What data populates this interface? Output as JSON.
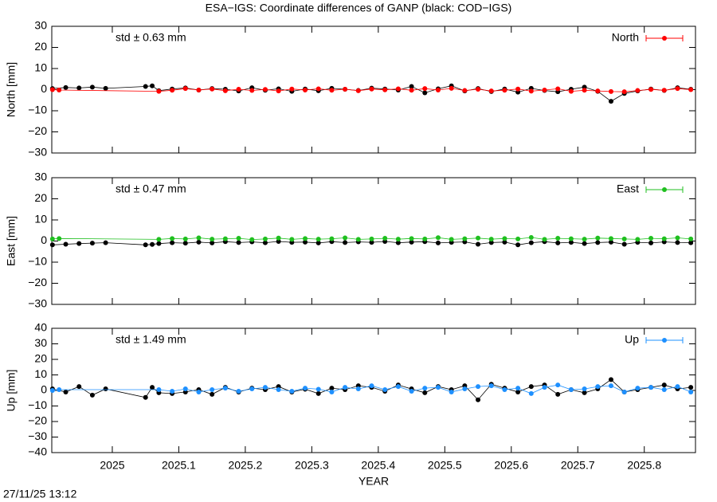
{
  "chart_data": [
    {
      "type": "line",
      "title": "ESA−IGS: Coordinate differences of GANP (black: COD−IGS)",
      "ylabel": "North [mm]",
      "annotation": "std ± 0.63 mm",
      "legend": "upper right",
      "xlim": [
        2024.909,
        2025.877
      ],
      "ylim": [
        -30,
        30
      ],
      "yticks": [
        {
          "value": -30,
          "label": "−30"
        },
        {
          "value": -20,
          "label": "−20"
        },
        {
          "value": -10,
          "label": "−10"
        },
        0,
        10,
        20,
        30
      ],
      "series": [
        {
          "color": "#000000",
          "x": [
            2024.91,
            2024.93,
            2024.95,
            2024.97,
            2024.99,
            2025.05,
            2025.06,
            2025.07,
            2025.09,
            2025.11,
            2025.13,
            2025.15,
            2025.17,
            2025.19,
            2025.21,
            2025.23,
            2025.25,
            2025.27,
            2025.29,
            2025.31,
            2025.33,
            2025.35,
            2025.37,
            2025.39,
            2025.41,
            2025.43,
            2025.45,
            2025.47,
            2025.49,
            2025.51,
            2025.53,
            2025.55,
            2025.57,
            2025.59,
            2025.61,
            2025.63,
            2025.65,
            2025.67,
            2025.69,
            2025.71,
            2025.73,
            2025.75,
            2025.77,
            2025.79,
            2025.81,
            2025.83,
            2025.85,
            2025.87
          ],
          "values": [
            0.5,
            1.0,
            0.8,
            1.2,
            0.6,
            1.5,
            1.8,
            -0.5,
            0.3,
            0.8,
            -0.2,
            0.5,
            0.2,
            -0.6,
            0.9,
            -0.3,
            0.4,
            -0.8,
            0.3,
            -0.5,
            0.6,
            0.2,
            -0.4,
            0.7,
            0.3,
            -0.2,
            1.5,
            -1.5,
            0.4,
            1.8,
            -0.6,
            0.5,
            -0.9,
            0.3,
            -1.2,
            0.6,
            -0.4,
            -1.0,
            0.2,
            1.2,
            -0.8,
            -5.5,
            -1.8,
            -0.6,
            0.3,
            -0.4,
            0.9,
            0.2
          ]
        },
        {
          "name": "North",
          "color": "#ff0000",
          "x": [
            2024.91,
            2024.92,
            2025.07,
            2025.09,
            2025.11,
            2025.13,
            2025.15,
            2025.17,
            2025.19,
            2025.21,
            2025.23,
            2025.25,
            2025.27,
            2025.29,
            2025.31,
            2025.33,
            2025.35,
            2025.37,
            2025.39,
            2025.41,
            2025.43,
            2025.45,
            2025.47,
            2025.49,
            2025.51,
            2025.53,
            2025.55,
            2025.57,
            2025.59,
            2025.61,
            2025.63,
            2025.65,
            2025.67,
            2025.69,
            2025.71,
            2025.73,
            2025.75,
            2025.77,
            2025.79,
            2025.81,
            2025.83,
            2025.85,
            2025.87
          ],
          "values": [
            0.0,
            -0.2,
            -0.8,
            -0.3,
            0.5,
            -0.2,
            0.3,
            -0.5,
            0.2,
            -0.4,
            0.1,
            -0.6,
            0.3,
            -0.2,
            0.4,
            -0.3,
            0.2,
            -0.5,
            0.3,
            -0.1,
            0.4,
            -0.3,
            0.5,
            -0.2,
            0.6,
            -0.4,
            0.2,
            -0.6,
            -0.3,
            0.3,
            -0.7,
            -0.2,
            0.4,
            -0.8,
            -0.3,
            -0.6,
            -0.9,
            -1.0,
            -0.4,
            0.1,
            -0.3,
            0.5,
            0.0
          ]
        }
      ]
    },
    {
      "type": "line",
      "ylabel": "East [mm]",
      "annotation": "std ± 0.47 mm",
      "legend": "upper right",
      "xlim": [
        2024.909,
        2025.877
      ],
      "ylim": [
        -30,
        30
      ],
      "yticks": [
        {
          "value": -30,
          "label": "−30"
        },
        {
          "value": -20,
          "label": "−20"
        },
        {
          "value": -10,
          "label": "−10"
        },
        0,
        10,
        20,
        30
      ],
      "series": [
        {
          "color": "#000000",
          "x": [
            2024.91,
            2024.93,
            2024.95,
            2024.97,
            2024.99,
            2025.05,
            2025.06,
            2025.07,
            2025.09,
            2025.11,
            2025.13,
            2025.15,
            2025.17,
            2025.19,
            2025.21,
            2025.23,
            2025.25,
            2025.27,
            2025.29,
            2025.31,
            2025.33,
            2025.35,
            2025.37,
            2025.39,
            2025.41,
            2025.43,
            2025.45,
            2025.47,
            2025.49,
            2025.51,
            2025.53,
            2025.55,
            2025.57,
            2025.59,
            2025.61,
            2025.63,
            2025.65,
            2025.67,
            2025.69,
            2025.71,
            2025.73,
            2025.75,
            2025.77,
            2025.79,
            2025.81,
            2025.83,
            2025.85,
            2025.87
          ],
          "values": [
            -1.8,
            -1.5,
            -1.2,
            -1.0,
            -0.8,
            -1.8,
            -1.6,
            -1.2,
            -0.8,
            -1.0,
            -0.5,
            -0.9,
            -0.3,
            -0.7,
            -0.4,
            -0.8,
            -0.2,
            -0.6,
            -0.5,
            -0.9,
            -0.3,
            -0.7,
            -0.4,
            -0.6,
            -0.2,
            -0.8,
            -0.5,
            -0.3,
            -0.9,
            -0.6,
            -0.4,
            -1.5,
            -0.7,
            -0.5,
            -1.8,
            -0.8,
            -0.3,
            -0.9,
            -0.6,
            -1.2,
            -0.7,
            -0.5,
            -1.5,
            -0.6,
            -0.9,
            -0.4,
            -0.7,
            -0.8
          ]
        },
        {
          "name": "East",
          "color": "#1fbf1f",
          "x": [
            2024.91,
            2024.92,
            2025.07,
            2025.09,
            2025.11,
            2025.13,
            2025.15,
            2025.17,
            2025.19,
            2025.21,
            2025.23,
            2025.25,
            2025.27,
            2025.29,
            2025.31,
            2025.33,
            2025.35,
            2025.37,
            2025.39,
            2025.41,
            2025.43,
            2025.45,
            2025.47,
            2025.49,
            2025.51,
            2025.53,
            2025.55,
            2025.57,
            2025.59,
            2025.61,
            2025.63,
            2025.65,
            2025.67,
            2025.69,
            2025.71,
            2025.73,
            2025.75,
            2025.77,
            2025.79,
            2025.81,
            2025.83,
            2025.85,
            2025.87
          ],
          "values": [
            1.0,
            1.2,
            0.8,
            1.2,
            1.0,
            1.5,
            0.9,
            1.1,
            1.3,
            0.7,
            1.0,
            1.4,
            0.8,
            1.2,
            0.9,
            1.1,
            1.5,
            0.8,
            1.0,
            1.3,
            0.9,
            1.2,
            1.0,
            1.6,
            0.8,
            1.1,
            1.4,
            0.9,
            1.2,
            1.0,
            1.7,
            0.8,
            1.3,
            1.1,
            0.9,
            1.4,
            1.2,
            1.0,
            0.8,
            1.3,
            1.1,
            1.5,
            1.0
          ]
        }
      ]
    },
    {
      "type": "line",
      "ylabel": "Up [mm]",
      "annotation": "std ± 1.49 mm",
      "legend": "upper right",
      "xlabel": "YEAR",
      "xlim": [
        2024.909,
        2025.877
      ],
      "ylim": [
        -40,
        40
      ],
      "xticks": [
        2025,
        2025.1,
        2025.2,
        2025.3,
        2025.4,
        2025.5,
        2025.6,
        2025.7,
        2025.8
      ],
      "yticks": [
        {
          "value": -40,
          "label": "−40"
        },
        {
          "value": -30,
          "label": "−30"
        },
        {
          "value": -20,
          "label": "−20"
        },
        {
          "value": -10,
          "label": "−10"
        },
        0,
        10,
        20,
        30,
        40
      ],
      "series": [
        {
          "color": "#000000",
          "x": [
            2024.91,
            2024.93,
            2024.95,
            2024.97,
            2024.99,
            2025.05,
            2025.06,
            2025.07,
            2025.09,
            2025.11,
            2025.13,
            2025.15,
            2025.17,
            2025.19,
            2025.21,
            2025.23,
            2025.25,
            2025.27,
            2025.29,
            2025.31,
            2025.33,
            2025.35,
            2025.37,
            2025.39,
            2025.41,
            2025.43,
            2025.45,
            2025.47,
            2025.49,
            2025.51,
            2025.53,
            2025.55,
            2025.57,
            2025.59,
            2025.61,
            2025.63,
            2025.65,
            2025.67,
            2025.69,
            2025.71,
            2025.73,
            2025.75,
            2025.77,
            2025.79,
            2025.81,
            2025.83,
            2025.85,
            2025.87
          ],
          "values": [
            1.0,
            -1.0,
            2.5,
            -3.0,
            1.0,
            -4.5,
            2.0,
            -1.5,
            -2.0,
            -1.0,
            0.5,
            -2.5,
            2.0,
            -1.0,
            1.5,
            0.5,
            2.5,
            -1.0,
            0.8,
            -2.0,
            1.5,
            0.5,
            3.0,
            2.0,
            -0.5,
            3.5,
            1.0,
            -1.5,
            2.5,
            0.5,
            3.0,
            -6.0,
            4.0,
            1.5,
            -1.0,
            2.5,
            3.5,
            -2.5,
            0.5,
            -1.5,
            1.0,
            7.0,
            -1.0,
            0.5,
            2.0,
            3.5,
            1.0,
            2.0
          ]
        },
        {
          "name": "Up",
          "color": "#1e90ff",
          "x": [
            2024.91,
            2024.92,
            2025.07,
            2025.09,
            2025.11,
            2025.13,
            2025.15,
            2025.17,
            2025.19,
            2025.21,
            2025.23,
            2025.25,
            2025.27,
            2025.29,
            2025.31,
            2025.33,
            2025.35,
            2025.37,
            2025.39,
            2025.41,
            2025.43,
            2025.45,
            2025.47,
            2025.49,
            2025.51,
            2025.53,
            2025.55,
            2025.57,
            2025.59,
            2025.61,
            2025.63,
            2025.65,
            2025.67,
            2025.69,
            2025.71,
            2025.73,
            2025.75,
            2025.77,
            2025.79,
            2025.81,
            2025.83,
            2025.85,
            2025.87
          ],
          "values": [
            0.0,
            0.5,
            0.5,
            -0.5,
            1.0,
            -1.0,
            0.5,
            1.5,
            -0.5,
            1.0,
            2.0,
            0.5,
            -0.5,
            1.5,
            0.8,
            -1.0,
            2.0,
            1.0,
            3.0,
            0.5,
            2.5,
            -0.5,
            1.5,
            2.0,
            -1.0,
            1.0,
            2.5,
            3.0,
            0.5,
            1.5,
            -2.0,
            2.0,
            3.5,
            0.5,
            1.0,
            2.5,
            3.0,
            -1.0,
            1.5,
            2.0,
            0.5,
            2.5,
            -1.0
          ]
        }
      ]
    }
  ],
  "timestamp": "27/11/25 13:12"
}
